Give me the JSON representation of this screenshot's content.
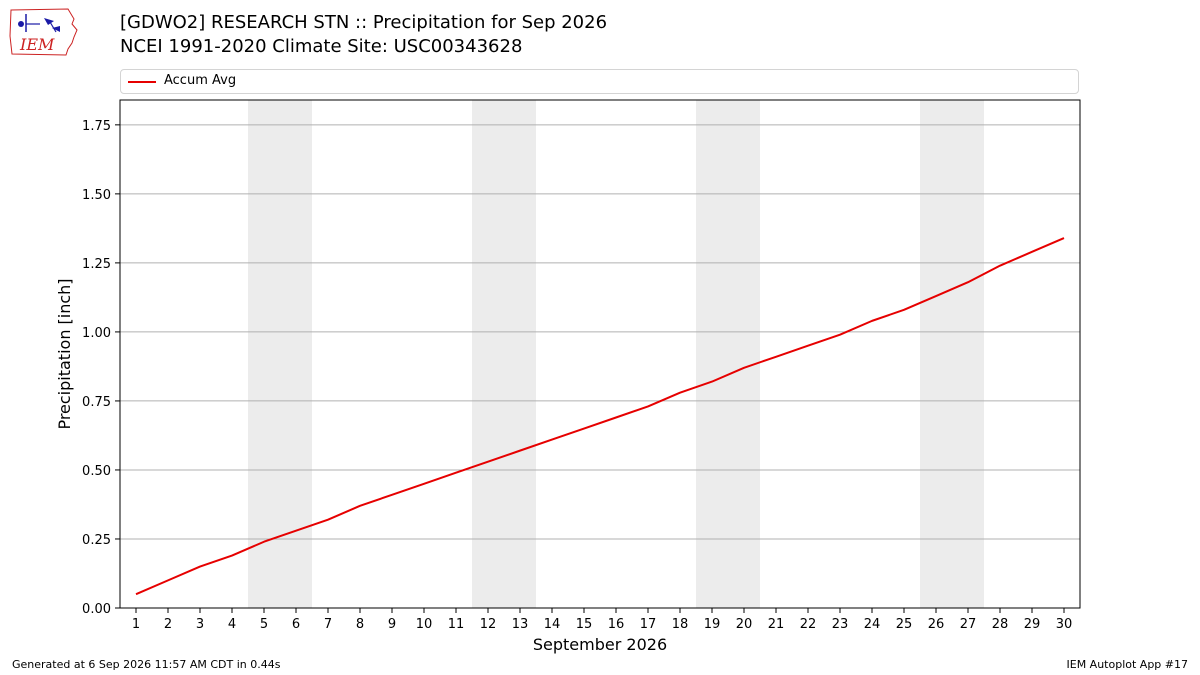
{
  "header": {
    "logo_text": "IEM",
    "title_line1": "[GDWO2] RESEARCH STN :: Precipitation for Sep 2026",
    "title_line2": "NCEI 1991-2020 Climate Site: USC00343628"
  },
  "colors": {
    "series": "#e60000",
    "weekend_band": "#ececec",
    "grid": "#b0b0b0",
    "logo_red": "#cc2222",
    "logo_blue": "#1a1aa6"
  },
  "chart_data": {
    "type": "line",
    "xlabel": "September 2026",
    "ylabel": "Precipitation [inch]",
    "xlim": [
      0.5,
      30.5
    ],
    "ylim": [
      0,
      1.84
    ],
    "x": [
      1,
      2,
      3,
      4,
      5,
      6,
      7,
      8,
      9,
      10,
      11,
      12,
      13,
      14,
      15,
      16,
      17,
      18,
      19,
      20,
      21,
      22,
      23,
      24,
      25,
      26,
      27,
      28,
      29,
      30
    ],
    "x_tick_labels": [
      "1",
      "2",
      "3",
      "4",
      "5",
      "6",
      "7",
      "8",
      "9",
      "10",
      "11",
      "12",
      "13",
      "14",
      "15",
      "16",
      "17",
      "18",
      "19",
      "20",
      "21",
      "22",
      "23",
      "24",
      "25",
      "26",
      "27",
      "28",
      "29",
      "30"
    ],
    "y_ticks": [
      0,
      0.25,
      0.5,
      0.75,
      1.0,
      1.25,
      1.5,
      1.75
    ],
    "y_tick_labels": [
      "0.00",
      "0.25",
      "0.50",
      "0.75",
      "1.00",
      "1.25",
      "1.50",
      "1.75"
    ],
    "grid": "horizontal",
    "legend_position": "top",
    "weekend_bands": [
      [
        4.5,
        6.5
      ],
      [
        11.5,
        13.5
      ],
      [
        18.5,
        20.5
      ],
      [
        25.5,
        27.5
      ]
    ],
    "series": [
      {
        "name": "Accum Avg",
        "values": [
          0.05,
          0.1,
          0.15,
          0.19,
          0.24,
          0.28,
          0.32,
          0.37,
          0.41,
          0.45,
          0.49,
          0.53,
          0.57,
          0.61,
          0.65,
          0.69,
          0.73,
          0.78,
          0.82,
          0.87,
          0.91,
          0.95,
          0.99,
          1.04,
          1.08,
          1.13,
          1.18,
          1.24,
          1.29,
          1.34
        ]
      }
    ]
  },
  "footer": {
    "generated": "Generated at 6 Sep 2026 11:57 AM CDT in 0.44s",
    "app": "IEM Autoplot App #17"
  }
}
